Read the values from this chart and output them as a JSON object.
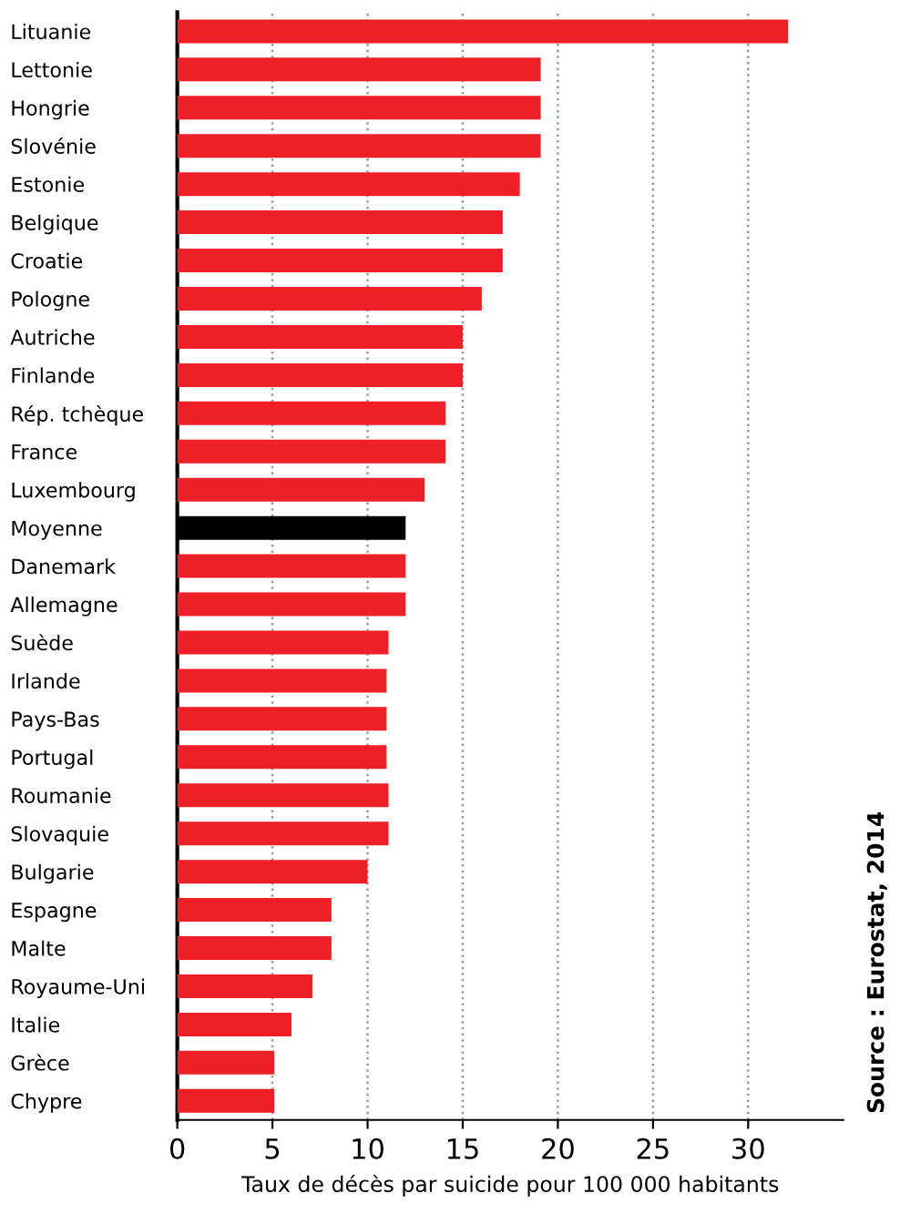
{
  "chart_data": {
    "type": "bar",
    "orientation": "horizontal",
    "xlabel": "Taux de décès par suicide pour 100 000 habitants",
    "categories": [
      "Lituanie",
      "Lettonie",
      "Hongrie",
      "Slovénie",
      "Estonie",
      "Belgique",
      "Croatie",
      "Pologne",
      "Autriche",
      "Finlande",
      "Rép. tchèque",
      "France",
      "Luxembourg",
      "Moyenne",
      "Danemark",
      "Allemagne",
      "Suède",
      "Irlande",
      "Pays-Bas",
      "Portugal",
      "Roumanie",
      "Slovaquie",
      "Bulgarie",
      "Espagne",
      "Malte",
      "Royaume-Uni",
      "Italie",
      "Grèce",
      "Chypre"
    ],
    "values": [
      32.1,
      19.1,
      19.1,
      19.1,
      18.0,
      17.1,
      17.1,
      16.0,
      15.0,
      15.0,
      14.1,
      14.1,
      13.0,
      12.0,
      12.0,
      12.0,
      11.1,
      11.0,
      11.0,
      11.0,
      11.1,
      11.1,
      10.0,
      8.1,
      8.1,
      7.1,
      6.0,
      5.1,
      5.1
    ],
    "colors": [
      "#ee1f26",
      "#ee1f26",
      "#ee1f26",
      "#ee1f26",
      "#ee1f26",
      "#ee1f26",
      "#ee1f26",
      "#ee1f26",
      "#ee1f26",
      "#ee1f26",
      "#ee1f26",
      "#ee1f26",
      "#ee1f26",
      "#000000",
      "#ee1f26",
      "#ee1f26",
      "#ee1f26",
      "#ee1f26",
      "#ee1f26",
      "#ee1f26",
      "#ee1f26",
      "#ee1f26",
      "#ee1f26",
      "#ee1f26",
      "#ee1f26",
      "#ee1f26",
      "#ee1f26",
      "#ee1f26",
      "#ee1f26"
    ],
    "xlim": [
      0,
      35
    ],
    "xticks": [
      0,
      5,
      10,
      15,
      20,
      25,
      30
    ],
    "grid": "x",
    "legend": false,
    "annotations": [
      "Source : Eurostat, 2014"
    ]
  }
}
